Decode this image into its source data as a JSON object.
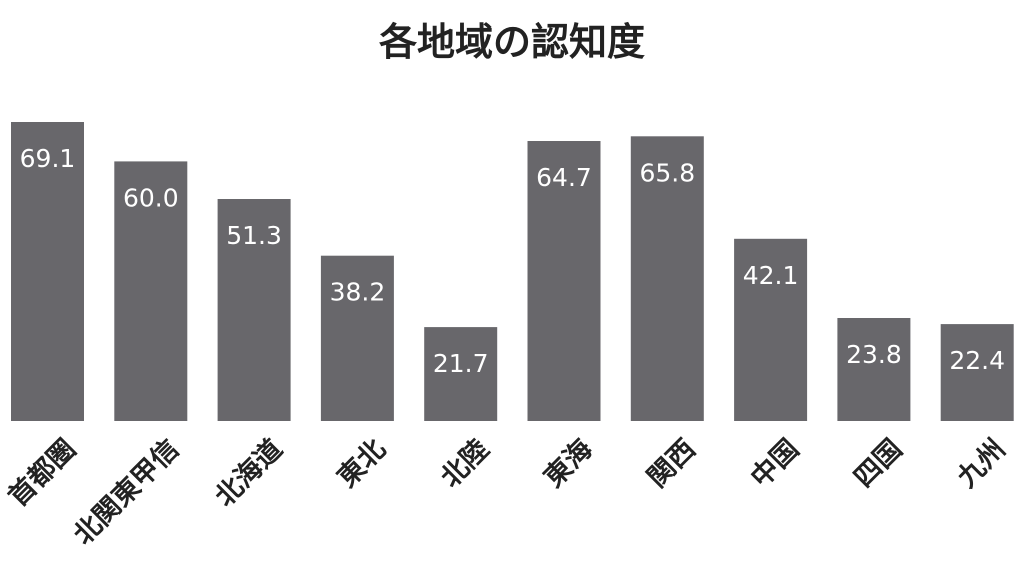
{
  "chart_data": {
    "type": "bar",
    "title": "各地域の認知度",
    "categories": [
      "首都圏",
      "北関東甲信",
      "北海道",
      "東北",
      "北陸",
      "東海",
      "関西",
      "中国",
      "四国",
      "九州"
    ],
    "values": [
      69.1,
      60.0,
      51.3,
      38.2,
      21.7,
      64.7,
      65.8,
      42.1,
      23.8,
      22.4
    ],
    "value_labels": [
      "69.1",
      "60.0",
      "51.3",
      "38.2",
      "21.7",
      "64.7",
      "65.8",
      "42.1",
      "23.8",
      "22.4"
    ],
    "xlabel": "",
    "ylabel": "",
    "ylim": [
      0,
      69.1
    ],
    "grid": false,
    "bar_color": "#68676b",
    "value_label_color": "#ffffff",
    "text_color": "#222222"
  }
}
